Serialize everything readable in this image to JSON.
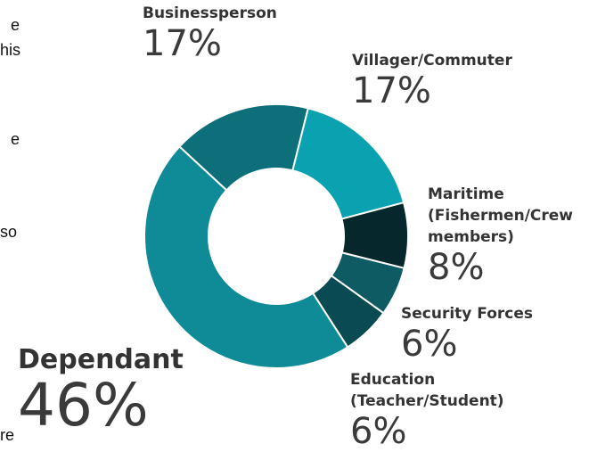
{
  "margin_text": [
    "e",
    "his",
    "e",
    "so",
    "re"
  ],
  "chart_data": {
    "type": "donut",
    "categories": [
      "Businessperson",
      "Villager/Commuter",
      "Maritime (Fishermen/Crew members)",
      "Security Forces",
      "Education (Teacher/Student)",
      "Dependant"
    ],
    "values": [
      17,
      17,
      8,
      6,
      6,
      46
    ],
    "value_labels": [
      "17%",
      "17%",
      "8%",
      "6%",
      "6%",
      "46%"
    ],
    "colors": [
      "#0d6f79",
      "#0aa1b1",
      "#06282c",
      "#0f5b64",
      "#0a4a52",
      "#0f8b97"
    ]
  }
}
